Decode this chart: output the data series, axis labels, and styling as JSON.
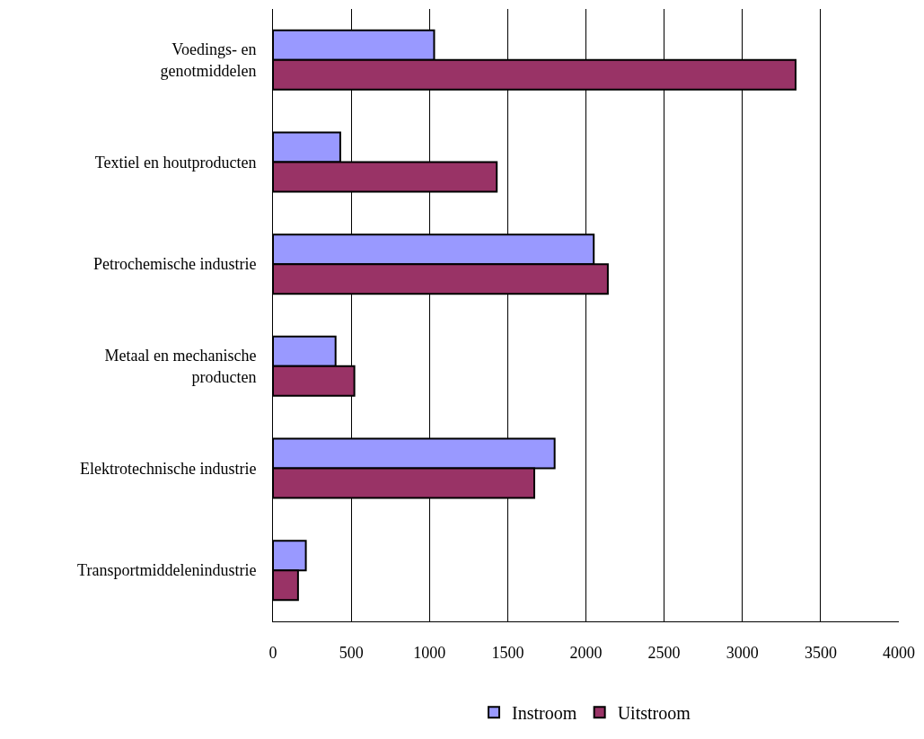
{
  "chart_data": {
    "type": "bar",
    "orientation": "horizontal",
    "categories": [
      "Voedings- en\ngenotmiddelen",
      "Textiel en houtproducten",
      "Petrochemische industrie",
      "Metaal en mechanische\nproducten",
      "Elektrotechnische industrie",
      "Transportmiddelenindustrie"
    ],
    "series": [
      {
        "name": "Instroom",
        "color": "#9999ff",
        "values": [
          1030,
          430,
          2050,
          400,
          1800,
          210
        ]
      },
      {
        "name": "Uitstroom",
        "color": "#993366",
        "values": [
          3340,
          1430,
          2140,
          520,
          1670,
          160
        ]
      }
    ],
    "xlim": [
      0,
      4000
    ],
    "xticks": [
      0,
      500,
      1000,
      1500,
      2000,
      2500,
      3000,
      3500,
      4000
    ],
    "grid": "x",
    "legend": "bottom"
  }
}
